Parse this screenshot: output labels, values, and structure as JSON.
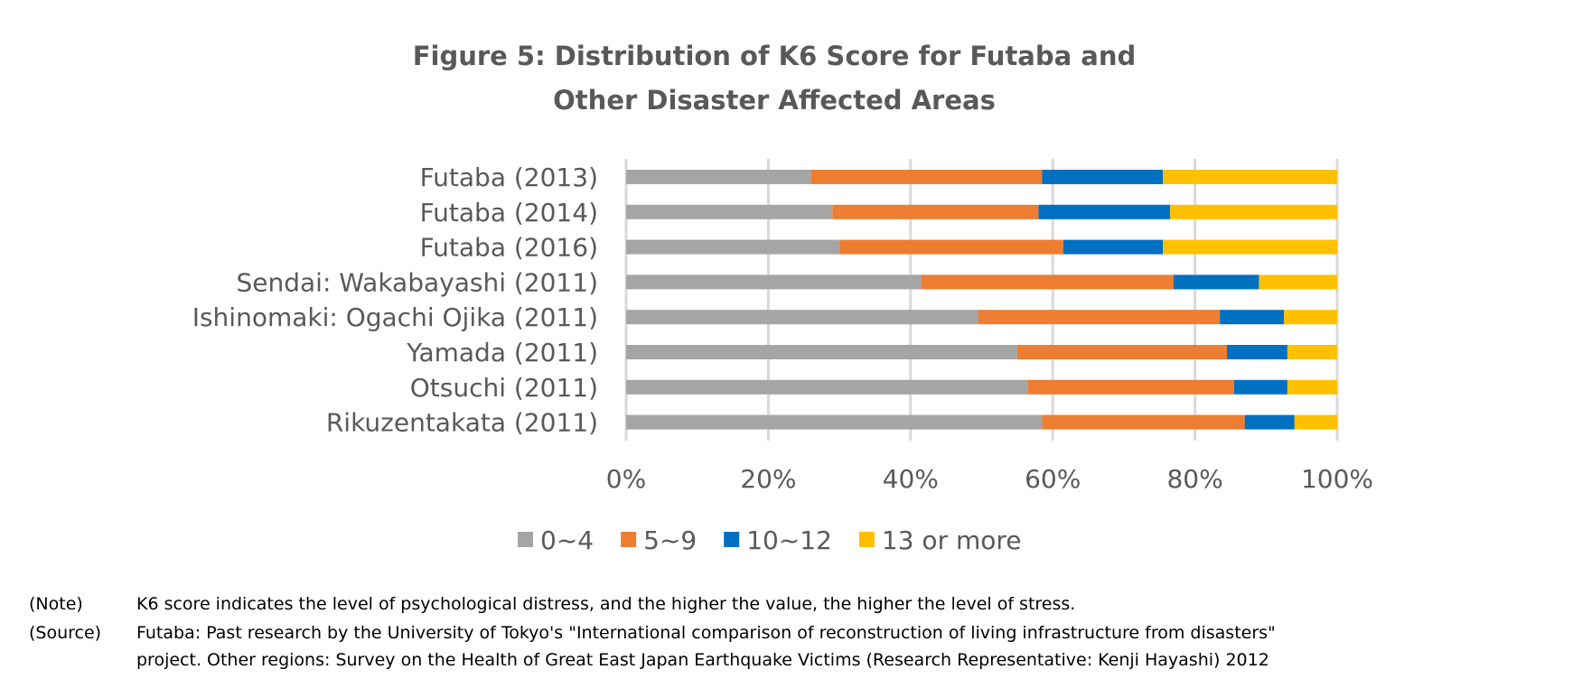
{
  "chart_data": {
    "type": "bar",
    "orientation": "horizontal",
    "stacked": "percent",
    "title": "Figure 5: Distribution of K6 Score for Futaba and",
    "title_line2": "Other Disaster Affected Areas",
    "categories": [
      "Futaba (2013)",
      "Futaba (2014)",
      "Futaba (2016)",
      "Sendai: Wakabayashi (2011)",
      "Ishinomaki: Ogachi Ojika (2011)",
      "Yamada (2011)",
      "Otsuchi (2011)",
      "Rikuzentakata (2011)"
    ],
    "series": [
      {
        "name": "0~4",
        "color": "#a5a5a5",
        "values": [
          26,
          29,
          30,
          41.5,
          49.5,
          55,
          56.5,
          58.5
        ]
      },
      {
        "name": "5~9",
        "color": "#ed7d31",
        "values": [
          32.5,
          29,
          31.5,
          35.5,
          34,
          29.5,
          29,
          28.5
        ]
      },
      {
        "name": "10~12",
        "color": "#0070c0",
        "values": [
          17,
          18.5,
          14,
          12,
          9,
          8.5,
          7.5,
          7
        ]
      },
      {
        "name": "13 or more",
        "color": "#ffc000",
        "values": [
          24.5,
          23.5,
          24.5,
          11,
          7.5,
          7,
          7,
          6
        ]
      }
    ],
    "xlim": [
      0,
      100
    ],
    "xticks": [
      "0%",
      "20%",
      "40%",
      "60%",
      "80%",
      "100%"
    ],
    "grid": true,
    "legend_position": "bottom"
  },
  "notes": [
    {
      "key": "(Note)",
      "text": "K6 score indicates the level of psychological distress, and the higher the value, the higher the level of stress."
    },
    {
      "key": "(Source)",
      "text": "Futaba: Past research by the University of Tokyo's \"International comparison of reconstruction of living infrastructure from disasters\""
    },
    {
      "key": "",
      "text": "project. Other regions: Survey on the Health of Great East Japan Earthquake Victims (Research Representative: Kenji Hayashi) 2012"
    }
  ]
}
